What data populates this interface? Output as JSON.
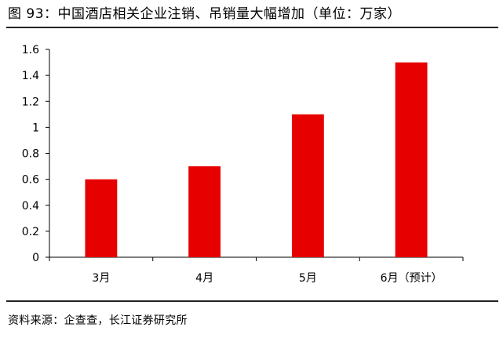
{
  "header": {
    "title": "图 93：中国酒店相关企业注销、吊销量大幅增加（单位：万家）"
  },
  "footer": {
    "source": "资料来源：企查查，长江证券研究所"
  },
  "chart_data": {
    "type": "bar",
    "categories": [
      "3月",
      "4月",
      "5月",
      "6月（预计）"
    ],
    "values": [
      0.6,
      0.7,
      1.1,
      1.5
    ],
    "ylim": [
      0,
      1.6
    ],
    "yticks": [
      "0",
      "0.2",
      "0.4",
      "0.6",
      "0.8",
      "1",
      "1.2",
      "1.4",
      "1.6"
    ],
    "title": "",
    "xlabel": "",
    "ylabel": "",
    "grid": false,
    "legend": "none",
    "bar_color": "#e60000"
  }
}
